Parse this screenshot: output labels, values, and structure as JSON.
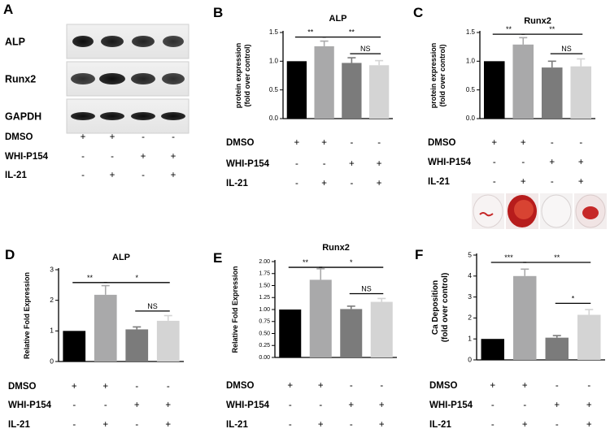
{
  "panel_labels": {
    "a": "A",
    "b": "B",
    "c": "C",
    "d": "D",
    "e": "E",
    "f": "F"
  },
  "western_blot": {
    "bands": [
      "ALP",
      "Runx2",
      "GAPDH"
    ],
    "band_color": "#1a1a1a"
  },
  "treatment_table": {
    "rows": [
      {
        "label": "DMSO",
        "signs": [
          "+",
          "+",
          "-",
          "-"
        ]
      },
      {
        "label": "WHI-P154",
        "signs": [
          "-",
          "-",
          "+",
          "+"
        ]
      },
      {
        "label": "IL-21",
        "signs": [
          "-",
          "+",
          "-",
          "+"
        ]
      }
    ]
  },
  "bar_colors": [
    "#000000",
    "#a9a9aa",
    "#7b7b7b",
    "#d4d4d4"
  ],
  "stain_colors": [
    "#c62828",
    "#e8dcdc"
  ],
  "chart_data": [
    {
      "panel": "B",
      "type": "bar",
      "title": "ALP",
      "ylabel_line1": "protein expression",
      "ylabel_line2": "(fold over control)",
      "ylim": [
        0,
        1.5
      ],
      "yticks": [
        "0.0",
        "0.5",
        "1.0",
        "1.5"
      ],
      "values": [
        1.0,
        1.26,
        0.97,
        0.93
      ],
      "errors": [
        0,
        0.09,
        0.09,
        0.08
      ],
      "sig": [
        {
          "from": 0,
          "to": 1,
          "label": "**",
          "y": 1.42
        },
        {
          "from": 1,
          "to": 3,
          "label": "**",
          "y": 1.42
        },
        {
          "from": 2,
          "to": 3,
          "label": "NS",
          "y": 1.13
        }
      ]
    },
    {
      "panel": "C",
      "type": "bar",
      "title": "Runx2",
      "ylabel_line1": "protein expression",
      "ylabel_line2": "(fold over control)",
      "ylim": [
        0,
        1.5
      ],
      "yticks": [
        "0.0",
        "0.5",
        "1.0",
        "1.5"
      ],
      "values": [
        1.0,
        1.29,
        0.89,
        0.91
      ],
      "errors": [
        0,
        0.12,
        0.11,
        0.13
      ],
      "sig": [
        {
          "from": 0,
          "to": 1,
          "label": "**",
          "y": 1.47
        },
        {
          "from": 1,
          "to": 3,
          "label": "**",
          "y": 1.47
        },
        {
          "from": 2,
          "to": 3,
          "label": "NS",
          "y": 1.13
        }
      ]
    },
    {
      "panel": "D",
      "type": "bar",
      "title": "ALP",
      "ylabel_line1": "Relative Fold Expression",
      "ylabel_line2": "",
      "ylim": [
        0,
        3
      ],
      "yticks": [
        "0",
        "1",
        "2",
        "3"
      ],
      "values": [
        1.0,
        2.18,
        1.05,
        1.33
      ],
      "errors": [
        0,
        0.3,
        0.08,
        0.17
      ],
      "sig": [
        {
          "from": 0,
          "to": 1,
          "label": "**",
          "y": 2.58
        },
        {
          "from": 1,
          "to": 3,
          "label": "*",
          "y": 2.58
        },
        {
          "from": 2,
          "to": 3,
          "label": "NS",
          "y": 1.65
        }
      ]
    },
    {
      "panel": "E",
      "type": "bar",
      "title": "Runx2",
      "ylabel_line1": "Relative Fold Expression",
      "ylabel_line2": "",
      "ylim": [
        0,
        2.0
      ],
      "yticks": [
        "0.00",
        "0.25",
        "0.50",
        "0.75",
        "1.00",
        "1.25",
        "1.50",
        "1.75",
        "2.00"
      ],
      "values": [
        1.0,
        1.62,
        1.01,
        1.16
      ],
      "errors": [
        0,
        0.23,
        0.06,
        0.07
      ],
      "sig": [
        {
          "from": 0,
          "to": 1,
          "label": "**",
          "y": 1.88
        },
        {
          "from": 1,
          "to": 3,
          "label": "*",
          "y": 1.88
        },
        {
          "from": 2,
          "to": 3,
          "label": "NS",
          "y": 1.33
        }
      ]
    },
    {
      "panel": "F",
      "type": "bar",
      "title": "",
      "ylabel_line1": "Ca Deposition",
      "ylabel_line2": "(fold over control)",
      "ylim": [
        0,
        5
      ],
      "yticks": [
        "0",
        "1",
        "2",
        "3",
        "4",
        "5"
      ],
      "values": [
        1.0,
        4.0,
        1.06,
        2.15
      ],
      "errors": [
        0,
        0.33,
        0.1,
        0.25
      ],
      "sig": [
        {
          "from": 0,
          "to": 1,
          "label": "***",
          "y": 4.65
        },
        {
          "from": 1,
          "to": 3,
          "label": "**",
          "y": 4.65
        },
        {
          "from": 2,
          "to": 3,
          "label": "*",
          "y": 2.7
        }
      ]
    }
  ]
}
